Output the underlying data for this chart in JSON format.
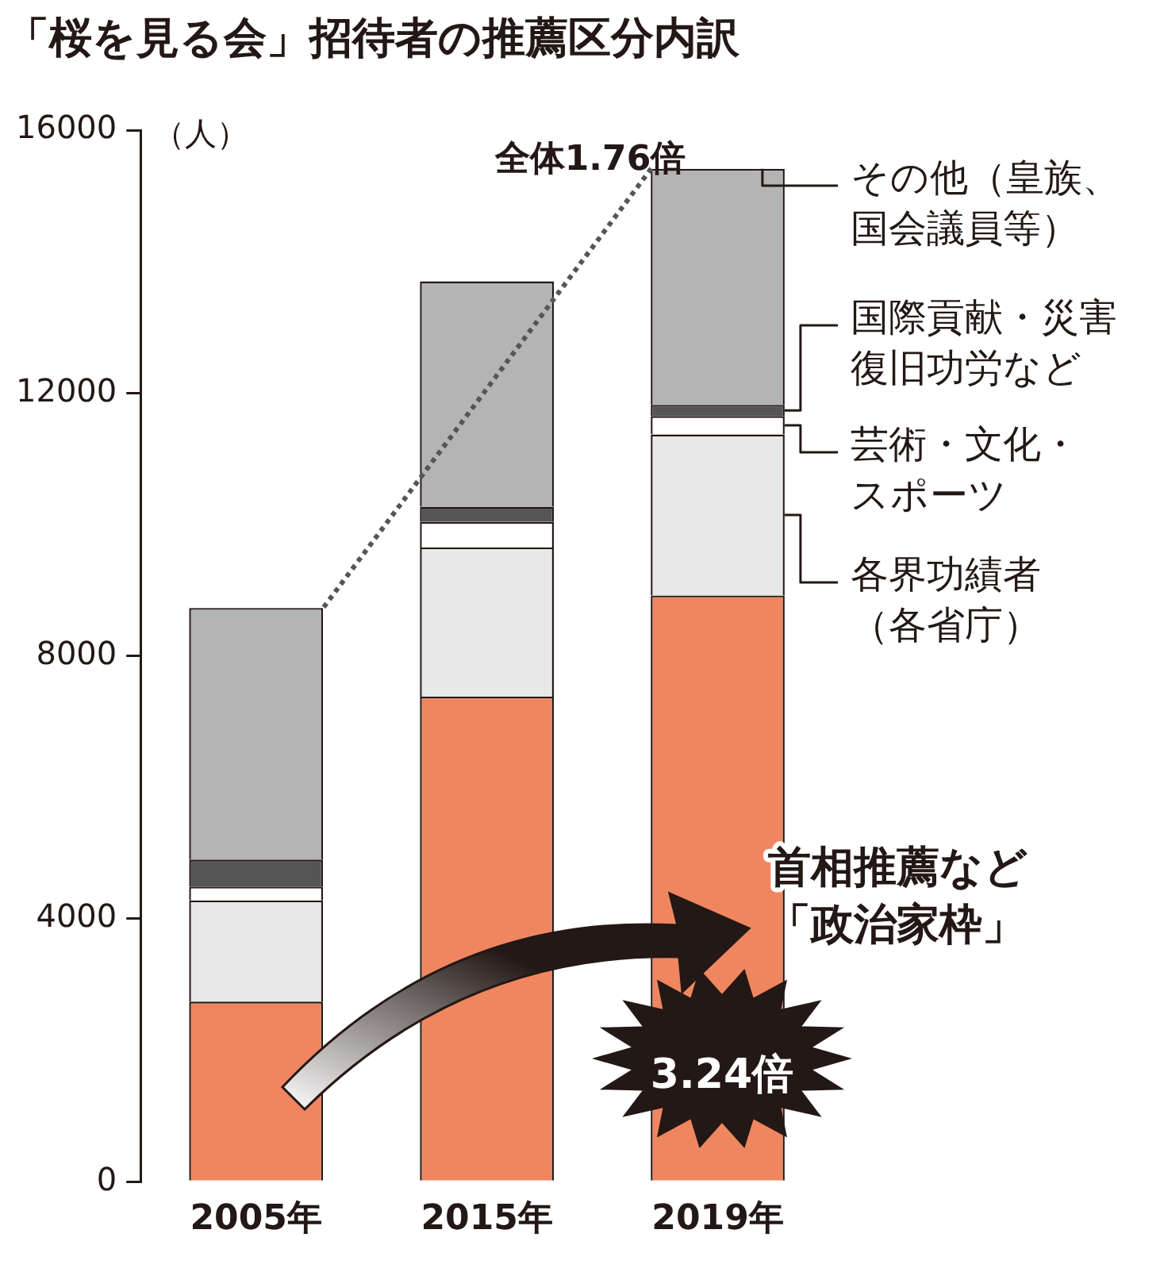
{
  "chart_data": {
    "type": "bar",
    "stacked": true,
    "title": "「桜を見る会」招待者の推薦区分内訳",
    "ylabel": "（人）",
    "categories": [
      "2005年",
      "2015年",
      "2019年"
    ],
    "series": [
      {
        "name": "首相推薦など「政治家枠」",
        "color": "#ef8660",
        "values": [
          2740,
          7380,
          8920
        ]
      },
      {
        "name": "各界功績者（各省庁）",
        "color": "#e8e8e8",
        "values": [
          1540,
          2270,
          2450
        ]
      },
      {
        "name": "芸術・文化・スポーツ",
        "color": "#ffffff",
        "values": [
          210,
          390,
          280
        ]
      },
      {
        "name": "国際貢献・災害復旧功労など",
        "color": "#555555",
        "values": [
          410,
          230,
          170
        ]
      },
      {
        "name": "その他（皇族、国会議員等）",
        "color": "#b4b4b4",
        "values": [
          3830,
          3430,
          3590
        ]
      }
    ],
    "ylim": [
      0,
      16000
    ],
    "yticks": [
      0,
      4000,
      8000,
      12000,
      16000
    ],
    "grid": false,
    "legend": false,
    "annotations": [
      "全体1.76倍",
      "3.24倍"
    ]
  }
}
